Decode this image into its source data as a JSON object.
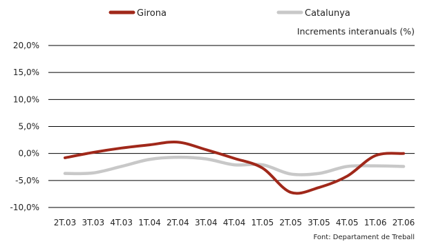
{
  "chart_data": {
    "type": "line",
    "title": "",
    "subtitle": "Increments interanuals (%)",
    "source": "Font: Departament de Treball",
    "xlabel": "",
    "ylabel": "",
    "ylim": [
      -10,
      20
    ],
    "yticks": [
      -10,
      -5,
      0,
      5,
      10,
      15,
      20
    ],
    "ytick_labels": [
      "-10,0%",
      "-5,0%",
      "0,0%",
      "5,0%",
      "10,0%",
      "15,0%",
      "20,0%"
    ],
    "categories": [
      "2T.03",
      "3T.03",
      "4T.03",
      "1T.04",
      "2T.04",
      "3T.04",
      "4T.04",
      "1T.05",
      "2T.05",
      "3T.05",
      "4T.05",
      "1T.06",
      "2T.06"
    ],
    "grid": "horizontal",
    "legend_position": "top",
    "series": [
      {
        "name": "Girona",
        "color": "#a0281a",
        "values": [
          -0.8,
          0.2,
          1.0,
          1.6,
          2.1,
          0.7,
          -0.9,
          -2.7,
          -7.2,
          -6.3,
          -4.2,
          -0.4,
          0.0
        ]
      },
      {
        "name": "Catalunya",
        "color": "#c8c8c8",
        "values": [
          -3.7,
          -3.6,
          -2.4,
          -1.1,
          -0.7,
          -1.0,
          -2.1,
          -2.1,
          -3.8,
          -3.7,
          -2.4,
          -2.3,
          -2.4
        ]
      }
    ]
  }
}
